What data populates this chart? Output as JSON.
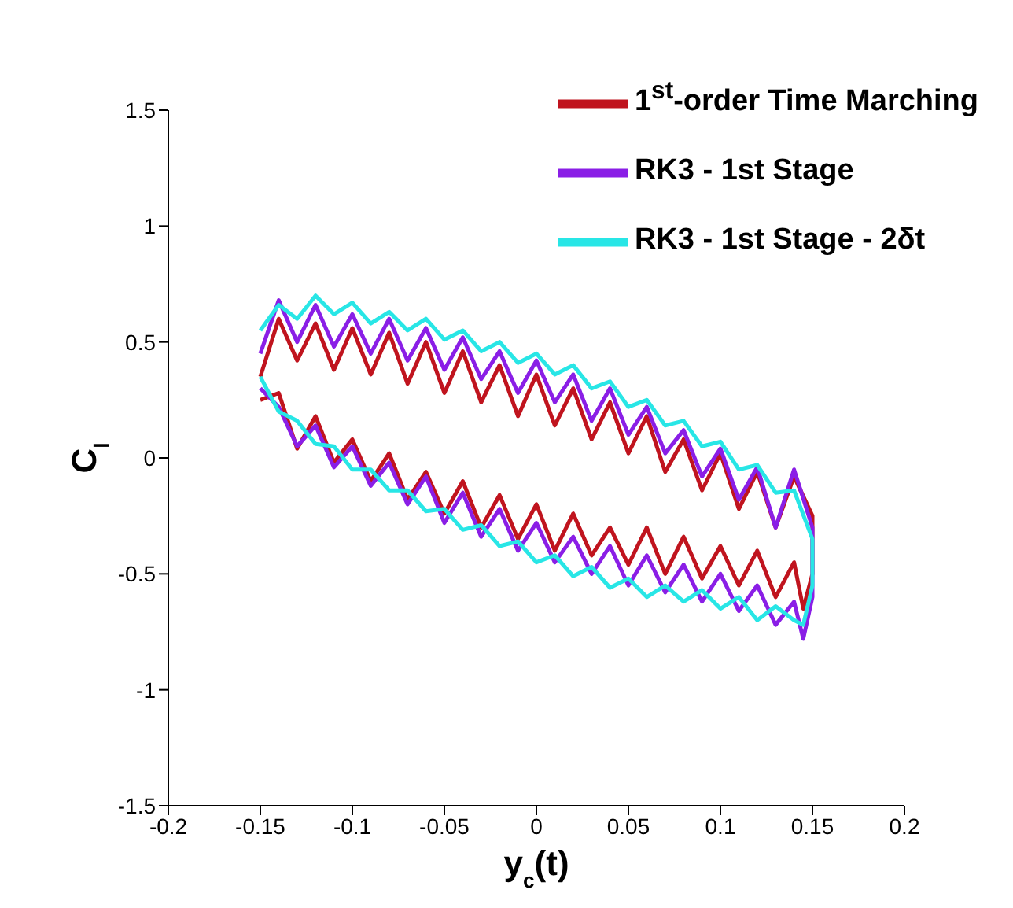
{
  "chart_data": {
    "type": "line",
    "xlabel": "y$_{c}$(t)",
    "ylabel": "C$_{l}$",
    "xlim": [
      -0.2,
      0.2
    ],
    "xticks": [
      -0.2,
      -0.15,
      -0.1,
      -0.05,
      0,
      0.05,
      0.1,
      0.15,
      0.2
    ],
    "ylim": [
      -1.5,
      1.5
    ],
    "yticks": [
      -1.5,
      -1,
      -0.5,
      0,
      0.5,
      1,
      1.5
    ],
    "legend": "top right",
    "x": [
      -0.15,
      -0.14,
      -0.13,
      -0.12,
      -0.11,
      -0.1,
      -0.09,
      -0.08,
      -0.07,
      -0.06,
      -0.05,
      -0.04,
      -0.03,
      -0.02,
      -0.01,
      0,
      0.01,
      0.02,
      0.03,
      0.04,
      0.05,
      0.06,
      0.07,
      0.08,
      0.09,
      0.1,
      0.11,
      0.12,
      0.13,
      0.14,
      0.15,
      0.15,
      0.145,
      0.14,
      0.13,
      0.12,
      0.11,
      0.1,
      0.09,
      0.08,
      0.07,
      0.06,
      0.05,
      0.04,
      0.03,
      0.02,
      0.01,
      0,
      -0.01,
      -0.02,
      -0.03,
      -0.04,
      -0.05,
      -0.06,
      -0.07,
      -0.08,
      -0.09,
      -0.1,
      -0.11,
      -0.12,
      -0.13,
      -0.14,
      -0.15
    ],
    "series": [
      {
        "name": "1$^{st}$-order Time Marching",
        "color": "#c0141e",
        "values": [
          0.35,
          0.6,
          0.42,
          0.58,
          0.38,
          0.56,
          0.36,
          0.54,
          0.32,
          0.5,
          0.28,
          0.46,
          0.24,
          0.4,
          0.18,
          0.36,
          0.14,
          0.3,
          0.08,
          0.24,
          0.02,
          0.18,
          -0.06,
          0.08,
          -0.14,
          0.02,
          -0.22,
          -0.06,
          -0.3,
          -0.08,
          -0.25,
          -0.5,
          -0.65,
          -0.45,
          -0.6,
          -0.4,
          -0.55,
          -0.38,
          -0.52,
          -0.34,
          -0.5,
          -0.3,
          -0.46,
          -0.3,
          -0.42,
          -0.24,
          -0.4,
          -0.2,
          -0.35,
          -0.16,
          -0.3,
          -0.1,
          -0.24,
          -0.06,
          -0.18,
          0.02,
          -0.1,
          0.08,
          -0.02,
          0.18,
          0.04,
          0.28,
          0.25
        ]
      },
      {
        "name": "RK3 - 1st Stage",
        "color": "#8a1ee6",
        "values": [
          0.45,
          0.68,
          0.5,
          0.66,
          0.48,
          0.62,
          0.45,
          0.6,
          0.42,
          0.56,
          0.38,
          0.52,
          0.34,
          0.46,
          0.28,
          0.42,
          0.24,
          0.36,
          0.16,
          0.3,
          0.1,
          0.22,
          0.02,
          0.12,
          -0.08,
          0.04,
          -0.18,
          -0.04,
          -0.3,
          -0.05,
          -0.3,
          -0.6,
          -0.78,
          -0.62,
          -0.72,
          -0.55,
          -0.66,
          -0.5,
          -0.62,
          -0.46,
          -0.58,
          -0.42,
          -0.55,
          -0.38,
          -0.5,
          -0.34,
          -0.45,
          -0.28,
          -0.4,
          -0.22,
          -0.34,
          -0.15,
          -0.28,
          -0.08,
          -0.2,
          -0.02,
          -0.12,
          0.05,
          -0.04,
          0.14,
          0.05,
          0.22,
          0.3
        ]
      },
      {
        "name": "RK3 - 1st Stage - 2δt",
        "color": "#28e6e6",
        "values": [
          0.55,
          0.66,
          0.6,
          0.7,
          0.62,
          0.67,
          0.58,
          0.63,
          0.55,
          0.6,
          0.51,
          0.55,
          0.46,
          0.5,
          0.41,
          0.45,
          0.36,
          0.4,
          0.3,
          0.33,
          0.22,
          0.25,
          0.14,
          0.16,
          0.05,
          0.07,
          -0.05,
          -0.03,
          -0.15,
          -0.14,
          -0.35,
          -0.55,
          -0.72,
          -0.7,
          -0.64,
          -0.7,
          -0.6,
          -0.65,
          -0.57,
          -0.62,
          -0.55,
          -0.6,
          -0.52,
          -0.56,
          -0.47,
          -0.51,
          -0.42,
          -0.45,
          -0.36,
          -0.38,
          -0.29,
          -0.31,
          -0.22,
          -0.23,
          -0.14,
          -0.14,
          -0.05,
          -0.05,
          0.05,
          0.06,
          0.16,
          0.2,
          0.35
        ]
      }
    ]
  }
}
